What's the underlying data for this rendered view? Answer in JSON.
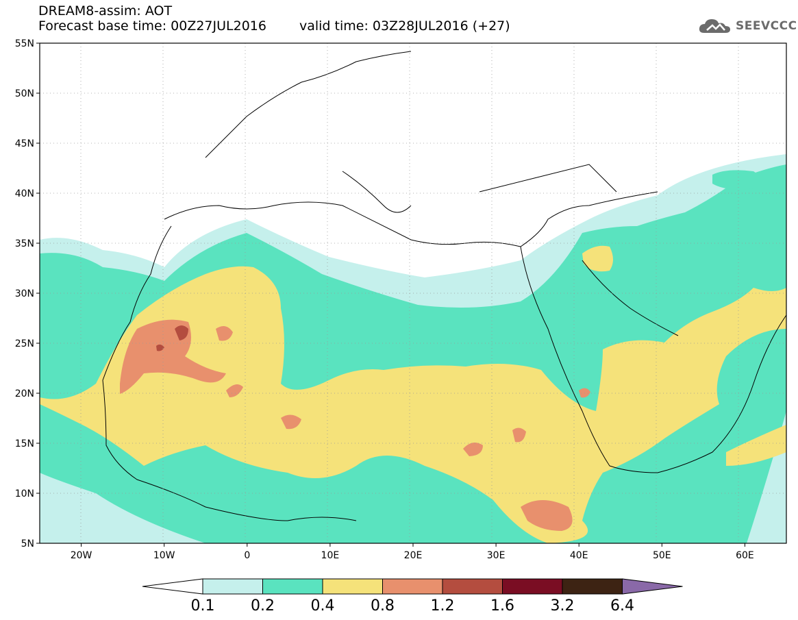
{
  "header": {
    "line1": "DREAM8-assim: AOT",
    "base": "Forecast base time: 00Z27JUL2016",
    "valid": "valid time: 03Z28JUL2016 (+27)"
  },
  "logo": {
    "text": "SEEVCCC",
    "icon": "cloud-logo-icon"
  },
  "map": {
    "lat_ticks": [
      "55N",
      "50N",
      "45N",
      "40N",
      "35N",
      "30N",
      "25N",
      "20N",
      "15N",
      "10N",
      "5N"
    ],
    "lon_ticks": [
      "20W",
      "10W",
      "0",
      "10E",
      "20E",
      "30E",
      "40E",
      "50E",
      "60E"
    ],
    "lat_range": [
      5,
      55
    ],
    "lon_range": [
      -25,
      65
    ],
    "grid": "dotted"
  },
  "colorbar": {
    "labels": [
      "0.1",
      "0.2",
      "0.4",
      "0.8",
      "1.2",
      "1.6",
      "3.2",
      "6.4"
    ],
    "colors": [
      "#ffffff",
      "#c5f0ec",
      "#5ae3bf",
      "#f5e27a",
      "#e8906d",
      "#b44d3f",
      "#7a0d23",
      "#3d2313",
      "#8a69a8"
    ]
  }
}
